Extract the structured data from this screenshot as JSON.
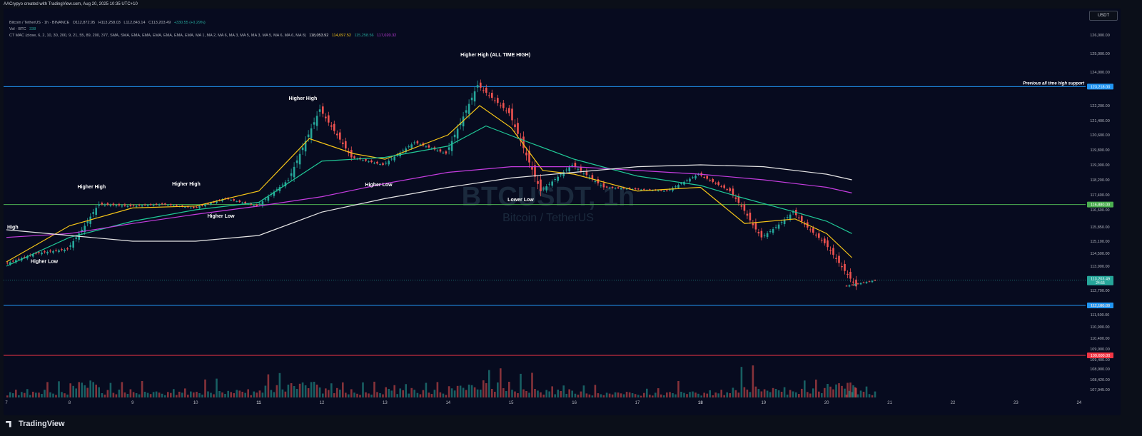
{
  "header": {
    "credit": "AACrypyo created with TradingView.com, Aug 20, 2025 10:35 UTC+10"
  },
  "legend": {
    "row1": {
      "title": "Bitcoin / TetherUS · 1h · BINANCE",
      "o": "O112,872.95",
      "h": "H113,258.03",
      "l": "L112,843.14",
      "c": "C113,203.49",
      "chg": "+330.55 (+0.29%)"
    },
    "row2": {
      "label": "Vol · BTC",
      "value": "338"
    },
    "row3": {
      "label": "CT MAC (close, 6, 2, 10, 30, 200, 9, 21, 55, 89, 200, 377, SMA, SMA, EMA, EMA, EMA, EMA, EMA, EMA, MA 1, MA 2, MA 6, MA 3, MA 5, MA 3, MA 5, MA 6, MA 6, MA 8)",
      "v1": "118,053.92",
      "v2": "114,097.52",
      "v3": "115,258.56",
      "v4": "117,020.32"
    }
  },
  "symbol_badge": "USDT",
  "watermark": {
    "symbol": "BTCUSDT, 1h",
    "name": "Bitcoin / TetherUS"
  },
  "brand": "TradingView",
  "colors": {
    "background": "#070b1f",
    "up": "#26a69a",
    "down": "#ef5350",
    "ema_fast": "#f5c518",
    "ema_mid": "#20c997",
    "ema_slow": "#c53de0",
    "sma_long": "#e6e6e6",
    "level_line": "#2196f3",
    "support_green": "#4caf50",
    "level_red": "#f23645"
  },
  "chart_data": {
    "type": "candlestick",
    "symbol": "BTCUSDT",
    "timeframe": "1h",
    "x_ticks": [
      "7",
      "8",
      "9",
      "10",
      "11",
      "12",
      "13",
      "14",
      "15",
      "16",
      "17",
      "18",
      "19",
      "20",
      "21",
      "22",
      "23",
      "24"
    ],
    "y_ticks": [
      "126,000.00",
      "125,000.00",
      "124,000.00",
      "122,200.00",
      "121,400.00",
      "120,600.00",
      "119,800.00",
      "119,000.00",
      "118,200.00",
      "117,400.00",
      "116,600.00",
      "115,850.00",
      "115,100.00",
      "114,500.00",
      "113,900.00",
      "112,700.00",
      "112,100.00",
      "111,500.00",
      "110,900.00",
      "110,400.00",
      "109,900.00",
      "109,400.00",
      "108,900.00",
      "108,420.00",
      "107,945.00"
    ],
    "ohlc": [
      {
        "day": "7",
        "o": 114000,
        "h": 114700,
        "l": 113500,
        "c": 114500
      },
      {
        "day": "7.5",
        "o": 114500,
        "h": 115400,
        "l": 114200,
        "c": 114700
      },
      {
        "day": "8",
        "o": 114700,
        "h": 117000,
        "l": 114600,
        "c": 116900
      },
      {
        "day": "8.5",
        "o": 116900,
        "h": 117700,
        "l": 116500,
        "c": 116800
      },
      {
        "day": "9",
        "o": 116800,
        "h": 117200,
        "l": 116300,
        "c": 116900
      },
      {
        "day": "9.5",
        "o": 116900,
        "h": 117100,
        "l": 116400,
        "c": 116700
      },
      {
        "day": "10",
        "o": 116700,
        "h": 117600,
        "l": 116600,
        "c": 117200
      },
      {
        "day": "10.5",
        "o": 117200,
        "h": 117300,
        "l": 116500,
        "c": 116800
      },
      {
        "day": "11",
        "o": 116800,
        "h": 118600,
        "l": 116700,
        "c": 118200
      },
      {
        "day": "11.5",
        "o": 118200,
        "h": 122300,
        "l": 118100,
        "c": 122000
      },
      {
        "day": "12",
        "o": 122000,
        "h": 122100,
        "l": 119000,
        "c": 119400
      },
      {
        "day": "12.5",
        "o": 119400,
        "h": 119600,
        "l": 118600,
        "c": 119000
      },
      {
        "day": "13",
        "o": 119000,
        "h": 120500,
        "l": 118800,
        "c": 120200
      },
      {
        "day": "13.5",
        "o": 120200,
        "h": 120500,
        "l": 119300,
        "c": 119600
      },
      {
        "day": "14",
        "o": 119600,
        "h": 123500,
        "l": 119400,
        "c": 123300
      },
      {
        "day": "14.5",
        "o": 123300,
        "h": 124400,
        "l": 121700,
        "c": 121800
      },
      {
        "day": "15",
        "o": 121800,
        "h": 121900,
        "l": 117200,
        "c": 117600
      },
      {
        "day": "15.5",
        "o": 117600,
        "h": 119300,
        "l": 117400,
        "c": 119000
      },
      {
        "day": "16",
        "o": 119000,
        "h": 119200,
        "l": 117000,
        "c": 117800
      },
      {
        "day": "16.5",
        "o": 117800,
        "h": 118100,
        "l": 117300,
        "c": 117700
      },
      {
        "day": "17",
        "o": 117700,
        "h": 117900,
        "l": 117300,
        "c": 117600
      },
      {
        "day": "17.5",
        "o": 117600,
        "h": 118800,
        "l": 117500,
        "c": 118500
      },
      {
        "day": "18",
        "o": 118500,
        "h": 118700,
        "l": 117400,
        "c": 117600
      },
      {
        "day": "18.5",
        "o": 117600,
        "h": 117700,
        "l": 115100,
        "c": 115300
      },
      {
        "day": "19",
        "o": 115300,
        "h": 116800,
        "l": 115000,
        "c": 116500
      },
      {
        "day": "19.5",
        "o": 116500,
        "h": 116700,
        "l": 114700,
        "c": 115000
      },
      {
        "day": "20",
        "o": 115000,
        "h": 115500,
        "l": 112600,
        "c": 112900
      },
      {
        "day": "20.3",
        "o": 112900,
        "h": 113300,
        "l": 112650,
        "c": 113200
      }
    ],
    "volume_scale": [
      0.35,
      0.45,
      0.9,
      0.5,
      0.4,
      0.35,
      0.5,
      0.4,
      0.75,
      1.0,
      0.55,
      0.4,
      0.6,
      0.45,
      0.75,
      1.0,
      0.6,
      0.5,
      0.35,
      0.3,
      0.3,
      0.4,
      0.3,
      0.85,
      0.5,
      0.55,
      0.95,
      0.4
    ],
    "moving_averages": [
      {
        "color": "#f5c518",
        "points": [
          [
            7,
            114100
          ],
          [
            8,
            115900
          ],
          [
            9,
            116700
          ],
          [
            10,
            116800
          ],
          [
            11,
            117600
          ],
          [
            11.8,
            120400
          ],
          [
            12.5,
            119600
          ],
          [
            13,
            119300
          ],
          [
            14,
            120600
          ],
          [
            14.5,
            122200
          ],
          [
            15,
            121000
          ],
          [
            15.5,
            118700
          ],
          [
            16,
            118500
          ],
          [
            17,
            117600
          ],
          [
            18,
            117800
          ],
          [
            18.7,
            116000
          ],
          [
            19.5,
            116200
          ],
          [
            20,
            115500
          ],
          [
            20.4,
            114300
          ]
        ]
      },
      {
        "color": "#20c997",
        "points": [
          [
            7,
            113900
          ],
          [
            8,
            115300
          ],
          [
            9,
            116100
          ],
          [
            10,
            116600
          ],
          [
            11,
            117000
          ],
          [
            12,
            119200
          ],
          [
            13,
            119400
          ],
          [
            14,
            120000
          ],
          [
            14.6,
            121100
          ],
          [
            15.2,
            120300
          ],
          [
            16,
            119300
          ],
          [
            17,
            118400
          ],
          [
            18,
            117900
          ],
          [
            18.6,
            117300
          ],
          [
            19.5,
            116500
          ],
          [
            20,
            116100
          ],
          [
            20.4,
            115500
          ]
        ]
      },
      {
        "color": "#c53de0",
        "points": [
          [
            7,
            115300
          ],
          [
            8,
            115500
          ],
          [
            9,
            116000
          ],
          [
            10,
            116400
          ],
          [
            11,
            116800
          ],
          [
            12,
            117300
          ],
          [
            13,
            118000
          ],
          [
            14,
            118600
          ],
          [
            15,
            118900
          ],
          [
            16,
            118900
          ],
          [
            17,
            118700
          ],
          [
            18,
            118500
          ],
          [
            19,
            118200
          ],
          [
            20,
            117800
          ],
          [
            20.4,
            117500
          ]
        ]
      },
      {
        "color": "#e6e6e6",
        "points": [
          [
            7,
            115700
          ],
          [
            8,
            115400
          ],
          [
            9,
            115100
          ],
          [
            10,
            115100
          ],
          [
            11,
            115400
          ],
          [
            12,
            116500
          ],
          [
            13,
            117200
          ],
          [
            14,
            117800
          ],
          [
            15,
            118300
          ],
          [
            16,
            118600
          ],
          [
            17,
            118900
          ],
          [
            18,
            119000
          ],
          [
            19,
            118900
          ],
          [
            20,
            118500
          ],
          [
            20.4,
            118200
          ]
        ]
      }
    ],
    "levels": [
      {
        "value": 123218.0,
        "label": "123,218.00",
        "color": "#2196f3",
        "text": "Previous all time high support"
      },
      {
        "value": 116880,
        "label": "116,880.00",
        "color": "#4caf50",
        "text": ""
      },
      {
        "value": 112100,
        "label": "112,100.00",
        "color": "#2196f3",
        "text": ""
      },
      {
        "value": 109600,
        "label": "109,600.00",
        "color": "#f23645",
        "text": ""
      }
    ],
    "current_price": {
      "value": 113203.49,
      "label": "113,203.49",
      "sub": "24:55"
    },
    "annotations": [
      {
        "day": 7.1,
        "price": 115750,
        "text": "High"
      },
      {
        "day": 7.6,
        "price": 114050,
        "text": "Higher Low"
      },
      {
        "day": 8.35,
        "price": 117750,
        "text": "Higher High"
      },
      {
        "day": 9.85,
        "price": 117900,
        "text": "Higher High"
      },
      {
        "day": 10.4,
        "price": 116250,
        "text": "Higher Low"
      },
      {
        "day": 11.7,
        "price": 122500,
        "text": "Higher High"
      },
      {
        "day": 12.9,
        "price": 117850,
        "text": "Higher Low"
      },
      {
        "day": 14.75,
        "price": 124850,
        "text": "Higher High (ALL TIME HIGH)"
      },
      {
        "day": 15.15,
        "price": 117050,
        "text": "Lower Low"
      }
    ]
  }
}
